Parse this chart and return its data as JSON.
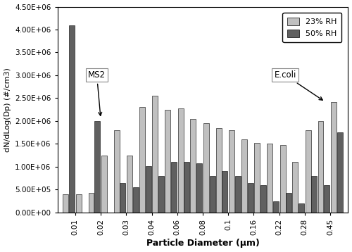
{
  "x_labels": [
    "0.01",
    "0.02",
    "0.03",
    "0.04",
    "0.06",
    "0.08",
    "0.1",
    "0.16",
    "0.22",
    "0.28",
    "0.45"
  ],
  "rh23": [
    400000.0,
    420000.0,
    1800000.0,
    2300000.0,
    2250000.0,
    2050000.0,
    1850000.0,
    1600000.0,
    1500000.0,
    1100000.0,
    2000000.0
  ],
  "rh23b": [
    400000.0,
    1250000.0,
    1250000.0,
    2550000.0,
    2280000.0,
    1950000.0,
    1800000.0,
    1520000.0,
    1480000.0,
    1800000.0,
    2420000.0
  ],
  "rh50": [
    4100000.0,
    2000000.0,
    650000.0,
    1020000.0,
    1100000.0,
    1080000.0,
    900000.0,
    650000.0,
    250000.0,
    200000.0,
    600000.0
  ],
  "rh50b": [
    0,
    0,
    550000.0,
    800000.0,
    1100000.0,
    800000.0,
    800000.0,
    600000.0,
    420000.0,
    800000.0,
    1750000.0
  ],
  "color_23": "#c0c0c0",
  "color_50": "#606060",
  "ylabel": "dN/dLog(Dp) (#/cm3)",
  "xlabel": "Particle Diameter (μm)",
  "ylim": [
    0,
    4500000.0
  ],
  "yticks": [
    0,
    500000.0,
    1000000.0,
    1500000.0,
    2000000.0,
    2500000.0,
    3000000.0,
    3500000.0,
    4000000.0,
    4500000.0
  ],
  "legend_23": "23% RH",
  "legend_50": "50% RH",
  "annotation_ms2": "MS2",
  "annotation_ecoli": "E.coli"
}
